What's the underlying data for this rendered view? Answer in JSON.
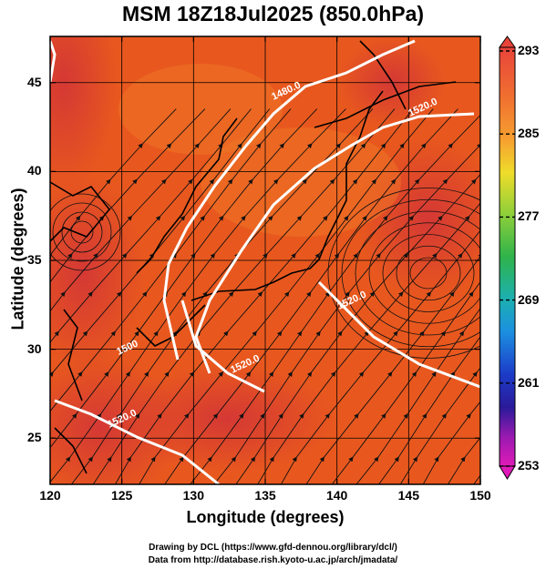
{
  "title": "MSM 18Z18Jul2025 (850.0hPa)",
  "axes": {
    "xlabel": "Longitude (degrees)",
    "ylabel": "Latitude  (degrees)",
    "xticks": [
      "120",
      "125",
      "130",
      "135",
      "140",
      "145",
      "150"
    ],
    "yticks": [
      "25",
      "30",
      "35",
      "40",
      "45"
    ]
  },
  "colorbar": {
    "ticks": [
      "293",
      "285",
      "277",
      "269",
      "261",
      "253"
    ]
  },
  "contours": {
    "labels": [
      "1480.0",
      "1520.0",
      "1520.0",
      "1520.0",
      "1520.0",
      "1500"
    ]
  },
  "credits": {
    "line1": "Drawing by DCL (https://www.gfd-dennou.org/library/dcl/)",
    "line2": "Data from http://database.rish.kyoto-u.ac.jp/arch/jmadata/"
  },
  "colors": {
    "field_main": "#e8581e",
    "field_warm": "#d93a2a",
    "field_cool": "#f07a28",
    "contour": "#ffffff",
    "stream": "#111111"
  }
}
